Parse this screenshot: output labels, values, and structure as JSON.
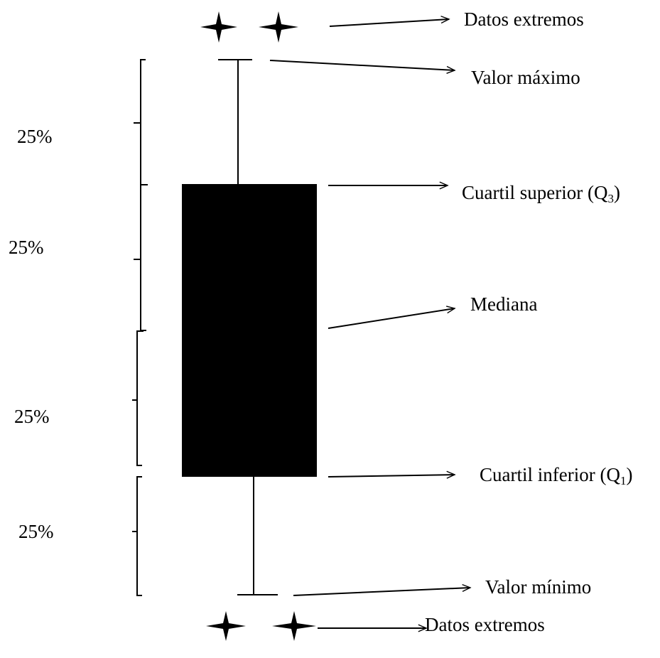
{
  "labels": {
    "outliers_top": "Datos extremos",
    "max": "Valor máximo",
    "q3": "Cuartil superior (Q",
    "q3_sub": "3",
    "close_paren": ")",
    "median": "Mediana",
    "q1": "Cuartil inferior (Q",
    "q1_sub": "1",
    "min": "Valor mínimo",
    "outliers_bottom": "Datos extremos"
  },
  "percentages": [
    "25%",
    "25%",
    "25%",
    "25%"
  ],
  "colors": {
    "box_fill": "#000000",
    "line": "#000000"
  },
  "icons": {
    "outlier": "four-point-star-icon"
  }
}
